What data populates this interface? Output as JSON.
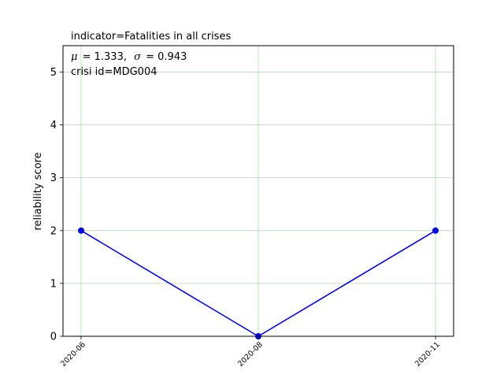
{
  "chart_data": {
    "type": "line",
    "title": "indicator=Fatalities in all crises",
    "annotation": {
      "stats_line_mu_symbol": "μ",
      "stats_line_mu_value": "= 1.333,",
      "stats_line_sigma_symbol": "σ",
      "stats_line_sigma_value": "= 0.943",
      "crisis_line": "crisi id=MDG004"
    },
    "xlabel": "",
    "ylabel": "reliability score",
    "x": [
      "2020-06",
      "2020-08",
      "2020-11"
    ],
    "series": [
      {
        "values": [
          2,
          0,
          2
        ],
        "color": "#0000ff"
      }
    ],
    "ylim": [
      0,
      5.5
    ],
    "yticks": [
      0,
      1,
      2,
      3,
      4,
      5
    ],
    "grid": true,
    "grid_color": "#b0d8b8"
  }
}
